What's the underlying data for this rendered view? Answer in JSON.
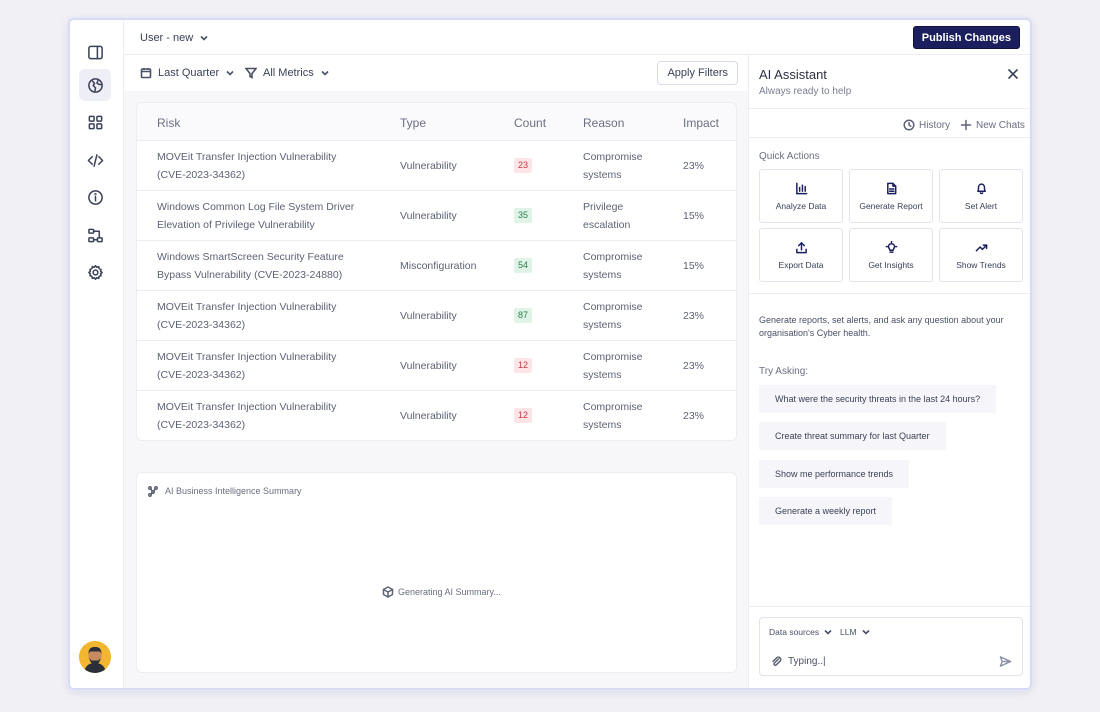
{
  "header": {
    "user_selector": "User - new",
    "publish_label": "Publish Changes"
  },
  "filters": {
    "period": "Last Quarter",
    "metrics": "All Metrics",
    "apply_label": "Apply Filters"
  },
  "table": {
    "columns": [
      "Risk",
      "Type",
      "Count",
      "Reason",
      "Impact"
    ],
    "rows": [
      {
        "risk": "MOVEit Transfer Injection Vulnerability (CVE-2023-34362)",
        "type": "Vulnerability",
        "count": "23",
        "count_color": "red",
        "reason": "Compromise systems",
        "impact": "23%"
      },
      {
        "risk": "Windows Common Log File System Driver Elevation of Privilege Vulnerability",
        "type": "Vulnerability",
        "count": "35",
        "count_color": "green",
        "reason": "Privilege escalation",
        "impact": "15%"
      },
      {
        "risk": "Windows SmartScreen Security Feature Bypass Vulnerability (CVE-2023-24880)",
        "type": "Misconfiguration",
        "count": "54",
        "count_color": "green",
        "reason": "Compromise systems",
        "impact": "15%"
      },
      {
        "risk": "MOVEit Transfer Injection Vulnerability (CVE-2023-34362)",
        "type": "Vulnerability",
        "count": "87",
        "count_color": "green",
        "reason": "Compromise systems",
        "impact": "23%"
      },
      {
        "risk": "MOVEit Transfer Injection Vulnerability (CVE-2023-34362)",
        "type": "Vulnerability",
        "count": "12",
        "count_color": "red",
        "reason": "Compromise systems",
        "impact": "23%"
      },
      {
        "risk": "MOVEit Transfer Injection Vulnerability (CVE-2023-34362)",
        "type": "Vulnerability",
        "count": "12",
        "count_color": "red",
        "reason": "Compromise systems",
        "impact": "23%"
      }
    ]
  },
  "summary": {
    "title": "AI Business Intelligence Summary",
    "status": "Generating AI Summary..."
  },
  "assistant": {
    "title": "AI Assistant",
    "subtitle": "Always ready to help",
    "history_label": "History",
    "new_chats_label": "New Chats",
    "quick_actions_label": "Quick Actions",
    "quick_actions": [
      {
        "label": "Analyze Data",
        "icon": "bar-chart-icon"
      },
      {
        "label": "Generate Report",
        "icon": "document-icon"
      },
      {
        "label": "Set Alert",
        "icon": "bell-icon"
      },
      {
        "label": "Export Data",
        "icon": "upload-icon"
      },
      {
        "label": "Get Insights",
        "icon": "lightbulb-icon"
      },
      {
        "label": "Show Trends",
        "icon": "trend-up-icon"
      }
    ],
    "description": "Generate reports, set alerts, and ask any question about your organisation's Cyber health.",
    "try_asking_label": "Try Asking:",
    "suggestions": [
      "What were the security threats in the last 24 hours?",
      "Create threat summary for last Quarter",
      "Show me performance trends",
      "Generate a weekly report"
    ],
    "data_sources_label": "Data sources",
    "llm_label": "LLM",
    "input_value": "Typing..|"
  },
  "colors": {
    "accent": "#1c1f5e",
    "count_red_bg": "#fde4e6",
    "count_green_bg": "#dff4e7"
  }
}
